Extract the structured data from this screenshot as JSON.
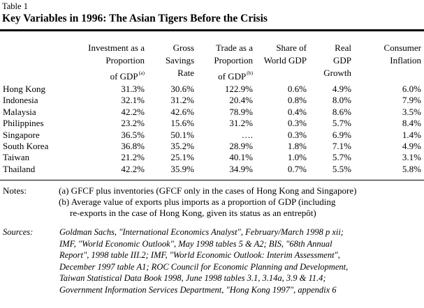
{
  "table_label": "Table 1",
  "title": "Key Variables in 1996: The Asian Tigers Before the Crisis",
  "columns": [
    {
      "lines": [
        "Investment as a",
        "Proportion",
        "of GDP"
      ],
      "note": "(a)"
    },
    {
      "lines": [
        "Gross",
        "Savings",
        "Rate"
      ],
      "note": ""
    },
    {
      "lines": [
        "Trade as a",
        "Proportion",
        "of GDP"
      ],
      "note": "(b)"
    },
    {
      "lines": [
        "Share of",
        "World GDP"
      ],
      "note": ""
    },
    {
      "lines": [
        "Real",
        "GDP",
        "Growth"
      ],
      "note": ""
    },
    {
      "lines": [
        "Consumer",
        "Inflation"
      ],
      "note": ""
    }
  ],
  "rows": [
    {
      "country": "Hong Kong",
      "values": [
        "31.3%",
        "30.6%",
        "122.9%",
        "0.6%",
        "4.9%",
        "6.0%"
      ]
    },
    {
      "country": "Indonesia",
      "values": [
        "32.1%",
        "31.2%",
        "20.4%",
        "0.8%",
        "8.0%",
        "7.9%"
      ]
    },
    {
      "country": "Malaysia",
      "values": [
        "42.2%",
        "42.6%",
        "78.9%",
        "0.4%",
        "8.6%",
        "3.5%"
      ]
    },
    {
      "country": "Philippines",
      "values": [
        "23.2%",
        "15.6%",
        "31.2%",
        "0.3%",
        "5.7%",
        "8.4%"
      ]
    },
    {
      "country": "Singapore",
      "values": [
        "36.5%",
        "50.1%",
        "….",
        "0.3%",
        "6.9%",
        "1.4%"
      ]
    },
    {
      "country": "South Korea",
      "values": [
        "36.8%",
        "35.2%",
        "28.9%",
        "1.8%",
        "7.1%",
        "4.9%"
      ]
    },
    {
      "country": "Taiwan",
      "values": [
        "21.2%",
        "25.1%",
        "40.1%",
        "1.0%",
        "5.7%",
        "3.1%"
      ]
    },
    {
      "country": "Thailand",
      "values": [
        "42.2%",
        "35.9%",
        "34.9%",
        "0.7%",
        "5.5%",
        "5.8%"
      ]
    }
  ],
  "notes": {
    "label": "Notes:",
    "lines": [
      "(a) GFCF plus inventories (GFCF only in the cases of Hong Kong and Singapore)",
      "(b) Average value of exports plus imports as a proportion of GDP (including",
      "re-exports in the case of Hong Kong, given its status as an entrepôt)"
    ]
  },
  "sources": {
    "label": "Sources:",
    "lines": [
      "Goldman Sachs, \"International Economics Analyst\", February/March 1998 p xii;",
      "IMF, \"World Economic Outlook\", May 1998 tables 5 & A2; BIS, \"68th Annual",
      "Report\", 1998 table III.2; IMF, \"World Economic Outlook: Interim Assessment\",",
      "December 1997 table A1; ROC Council for Economic Planning and Development,",
      "Taiwan Statistical Data Book 1998, June 1998 tables 3.1, 3.14a, 3.9 & 11.4;",
      "Government Information Services Department, \"Hong Kong 1997\", appendix 6"
    ]
  }
}
